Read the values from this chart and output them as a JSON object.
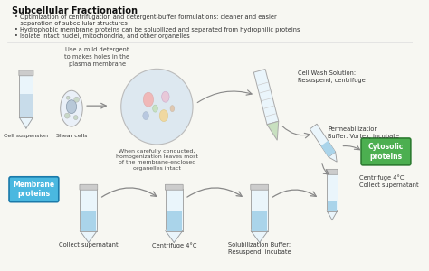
{
  "title": "Subcellular Fractionation",
  "bullet1": "Optimization of centrifugation and detergent-buffer formulations: cleaner and easier",
  "bullet1b": "   separation of subcellular structures",
  "bullet2": "Hydrophobic membrane proteins can be solubilized and separated from hydrophilic proteins",
  "bullet3": "Isolate intact nuclei, mitochondria, and other organelles",
  "bg_color": "#f7f7f2",
  "title_color": "#111111",
  "label_mild_detergent": "Use a mild detergent\nto makes holes in the\nplasma membrane",
  "label_cell_suspension": "Cell suspension",
  "label_shear": "Shear cells",
  "label_homogenization": "When carefully conducted,\nhomogenization leaves most\nof the membrane-enclosed\norganelles intact",
  "label_cell_wash": "Cell Wash Solution:\nResuspend, centrifuge",
  "label_permeabilization": "Permeabilization\nBuffer: Vortex, incubate",
  "box_cytosolic_text": "Cytosolic\nproteins",
  "box_cytosolic_color": "#4caf50",
  "box_cytosolic_edge": "#2e7d32",
  "label_centrifuge_right": "Centrifuge 4°C",
  "label_collect_right": "Collect supernatant",
  "box_membrane_text": "Membrane\nproteins",
  "box_membrane_color": "#4ab8e0",
  "box_membrane_edge": "#1a7aaa",
  "label_bottom1": "Collect supernatant",
  "label_bottom2": "Centrifuge 4°C",
  "label_bottom3": "Solubilization Buffer:\nResuspend, incubate",
  "tube_body": "#eaf5fb",
  "tube_liquid": "#aad4ea",
  "tube_edge": "#999999",
  "tube_cap": "#cccccc",
  "arrow_color": "#888888"
}
